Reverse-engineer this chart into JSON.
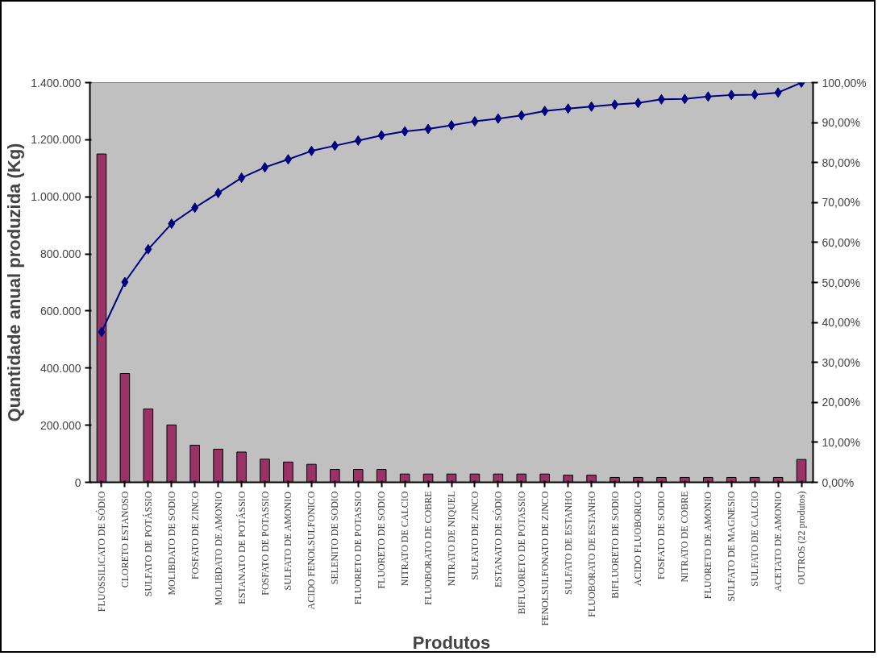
{
  "chart_data": {
    "type": "bar",
    "xlabel": "Produtos",
    "ylabel": "Quantidade anual produzida (Kg)",
    "categories": [
      "FLUOSSILICATO DE SÓDIO",
      "CLORETO ESTANOSO",
      "SULFATO DE POTÁSSIO",
      "MOLIBDATO DE SODIO",
      "FOSFATO DE ZINCO",
      "MOLIBDATO DE AMONIO",
      "ESTANATO DE POTÁSSIO",
      "FOSFATO DE POTASSIO",
      "SULFATO DE AMONIO",
      "ACIDO FENOLSULFONICO",
      "SELENITO DE SODIO",
      "FLUORETO DE POTASSIO",
      "FLUORETO DE SODIO",
      "NITRATO DE CALCIO",
      "FLUOBORATO DE COBRE",
      "NITRATO DE NIQUEL",
      "SULFATO DE ZINCO",
      "ESTANATO DE SÓDIO",
      "BIFLUORETO DE POTASSIO",
      "FENOLSULFONATO DE ZINCO",
      "SULFATO DE ESTANHO",
      "FLUOBORATO DE ESTANHO",
      "BIFLUORETO DE SODIO",
      "ACIDO FLUOBORICO",
      "FOSFATO DE SODIO",
      "NITRATO DE COBRE",
      "FLUORETO DE AMONIO",
      "SULFATO DE MAGNESIO",
      "SULFATO DE CALCIO",
      "ACETATO DE AMONIO",
      "OUTROS (22 produtos)"
    ],
    "series": [
      {
        "color": "#993366",
        "values": [
          1150000,
          381000,
          257000,
          201000,
          130000,
          116000,
          106000,
          81000,
          71000,
          63000,
          45000,
          45000,
          45000,
          29000,
          29000,
          29000,
          29000,
          29000,
          29000,
          29000,
          25000,
          25000,
          17000,
          17000,
          17000,
          17000,
          17000,
          17000,
          17000,
          17000,
          80000
        ]
      },
      {
        "type": "line",
        "axis": "y2",
        "color": "#000080",
        "marker": "diamond",
        "line_style": "solid",
        "values": [
          37.6,
          50.1,
          58.3,
          64.7,
          68.7,
          72.4,
          76.2,
          78.8,
          80.8,
          82.9,
          84.2,
          85.5,
          86.8,
          87.8,
          88.4,
          89.3,
          90.3,
          91.0,
          91.8,
          92.9,
          93.5,
          94.0,
          94.5,
          94.9,
          95.8,
          95.9,
          96.5,
          96.9,
          97.0,
          97.5,
          100
        ]
      }
    ],
    "ylim": [
      0,
      1400000
    ],
    "yticks": [
      0,
      {
        "value": 200000,
        "label": "200.000"
      },
      {
        "value": 400000,
        "label": "400.000"
      },
      {
        "value": 600000,
        "label": "600.000"
      },
      {
        "value": 800000,
        "label": "800.000"
      },
      {
        "value": 1000000,
        "label": "1.000.000"
      },
      {
        "value": 1200000,
        "label": "1.200.000"
      },
      {
        "value": 1400000,
        "label": "1.400.000"
      }
    ],
    "y2lim": [
      0,
      100
    ],
    "y2ticks": [
      {
        "value": 0,
        "label": "0,00%"
      },
      {
        "value": 10,
        "label": "10,00%"
      },
      {
        "value": 20,
        "label": "20,00%"
      },
      {
        "value": 30,
        "label": "30,00%"
      },
      {
        "value": 40,
        "label": "40,00%"
      },
      {
        "value": 50,
        "label": "50,00%"
      },
      {
        "value": 60,
        "label": "60,00%"
      },
      {
        "value": 70,
        "label": "70,00%"
      },
      {
        "value": 80,
        "label": "80,00%"
      },
      {
        "value": 90,
        "label": "90,00%"
      },
      {
        "value": 100,
        "label": "100,00%"
      }
    ],
    "grid": false
  }
}
